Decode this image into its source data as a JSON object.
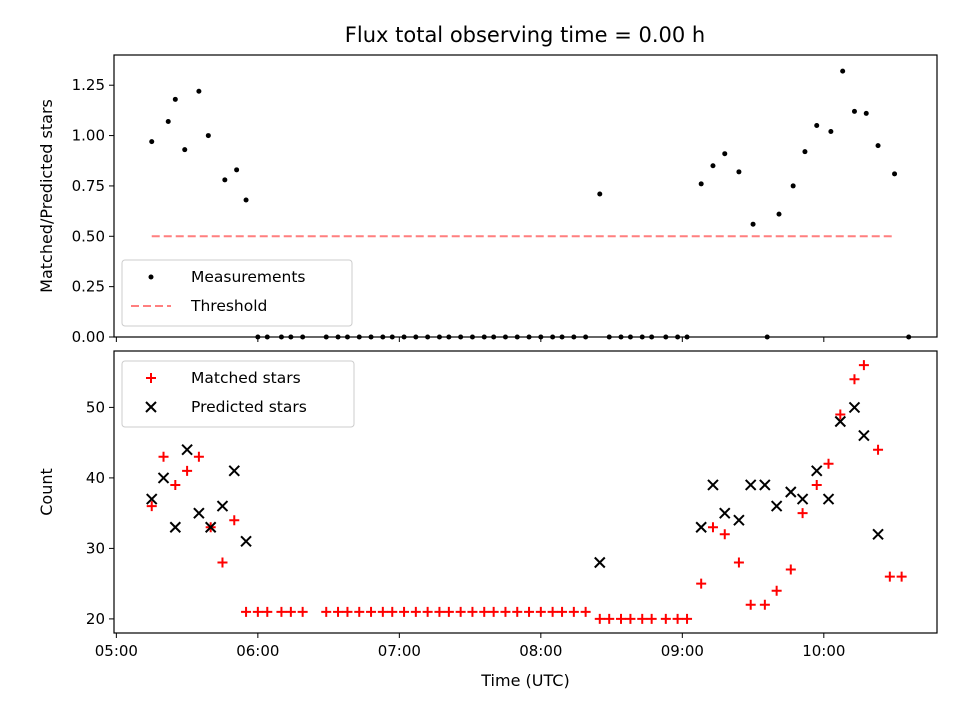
{
  "figure": {
    "title": "Flux total observing time = 0.00 h"
  },
  "chart_data": [
    {
      "type": "scatter",
      "xlabel": "",
      "ylabel": "Matched/Predicted stars",
      "xlim": [
        "04:59",
        "10:48"
      ],
      "ylim": [
        0,
        1.4
      ],
      "yticks": [
        0,
        0.25,
        0.5,
        0.75,
        1.0,
        1.25
      ],
      "ytick_labels": [
        "0.00",
        "0.25",
        "0.50",
        "0.75",
        "1.00",
        "1.25"
      ],
      "xticks": [
        "05:00",
        "06:00",
        "07:00",
        "08:00",
        "09:00",
        "10:00"
      ],
      "show_xtick_labels": false,
      "grid": false,
      "legend": {
        "placement": "lower-left",
        "entries": [
          "Measurements",
          "Threshold"
        ]
      },
      "series": [
        {
          "name": "Measurements",
          "color": "#000000",
          "marker": "dot",
          "x": [
            "05:15",
            "05:22",
            "05:25",
            "05:29",
            "05:35",
            "05:39",
            "05:46",
            "05:51",
            "05:55",
            "06:00",
            "06:04",
            "06:10",
            "06:14",
            "06:19",
            "06:29",
            "06:34",
            "06:38",
            "06:43",
            "06:48",
            "06:53",
            "06:57",
            "07:02",
            "07:07",
            "07:12",
            "07:17",
            "07:21",
            "07:26",
            "07:31",
            "07:36",
            "07:40",
            "07:45",
            "07:50",
            "07:55",
            "08:00",
            "08:05",
            "08:09",
            "08:14",
            "08:19",
            "08:25",
            "08:29",
            "08:34",
            "08:38",
            "08:43",
            "08:47",
            "08:53",
            "08:58",
            "09:02",
            "09:08",
            "09:13",
            "09:18",
            "09:24",
            "09:30",
            "09:36",
            "09:41",
            "09:47",
            "09:52",
            "09:57",
            "10:03",
            "10:08",
            "10:13",
            "10:18",
            "10:23",
            "10:30",
            "10:36"
          ],
          "y": [
            0.97,
            1.07,
            1.18,
            0.93,
            1.22,
            1.0,
            0.78,
            0.83,
            0.68,
            0,
            0,
            0,
            0,
            0,
            0,
            0,
            0,
            0,
            0,
            0,
            0,
            0,
            0,
            0,
            0,
            0,
            0,
            0,
            0,
            0,
            0,
            0,
            0,
            0,
            0,
            0,
            0,
            0,
            0.71,
            0,
            0,
            0,
            0,
            0,
            0,
            0,
            0,
            0.76,
            0.85,
            0.91,
            0.82,
            0.56,
            0,
            0.61,
            0.75,
            0.92,
            1.05,
            1.02,
            1.32,
            1.12,
            1.11,
            0.95,
            0.81,
            0
          ]
        },
        {
          "name": "Threshold",
          "color": "#ff7f7f",
          "style": "dashed",
          "x": [
            "05:15",
            "10:30"
          ],
          "y": [
            0.5,
            0.5
          ]
        }
      ]
    },
    {
      "type": "scatter",
      "xlabel": "Time (UTC)",
      "ylabel": "Count",
      "xlim": [
        "04:59",
        "10:48"
      ],
      "ylim": [
        18,
        58
      ],
      "yticks": [
        20,
        30,
        40,
        50
      ],
      "ytick_labels": [
        "20",
        "30",
        "40",
        "50"
      ],
      "xticks": [
        "05:00",
        "06:00",
        "07:00",
        "08:00",
        "09:00",
        "10:00"
      ],
      "xtick_labels": [
        "05:00",
        "06:00",
        "07:00",
        "08:00",
        "09:00",
        "10:00"
      ],
      "grid": false,
      "legend": {
        "placement": "upper-left",
        "entries": [
          "Matched stars",
          "Predicted stars"
        ]
      },
      "series": [
        {
          "name": "Matched stars",
          "color": "#ff0000",
          "marker": "plus",
          "x": [
            "05:15",
            "05:20",
            "05:25",
            "05:30",
            "05:35",
            "05:40",
            "05:45",
            "05:50",
            "05:55",
            "06:00",
            "06:04",
            "06:10",
            "06:14",
            "06:19",
            "06:29",
            "06:34",
            "06:38",
            "06:43",
            "06:48",
            "06:53",
            "06:57",
            "07:02",
            "07:07",
            "07:12",
            "07:17",
            "07:21",
            "07:26",
            "07:31",
            "07:36",
            "07:40",
            "07:45",
            "07:50",
            "07:55",
            "08:00",
            "08:05",
            "08:09",
            "08:14",
            "08:19",
            "08:25",
            "08:29",
            "08:34",
            "08:38",
            "08:43",
            "08:47",
            "08:53",
            "08:58",
            "09:02",
            "09:08",
            "09:13",
            "09:18",
            "09:24",
            "09:29",
            "09:35",
            "09:40",
            "09:46",
            "09:51",
            "09:57",
            "10:02",
            "10:07",
            "10:13",
            "10:17",
            "10:23",
            "10:28",
            "10:33"
          ],
          "y": [
            36,
            43,
            39,
            41,
            43,
            33,
            28,
            34,
            21,
            21,
            21,
            21,
            21,
            21,
            21,
            21,
            21,
            21,
            21,
            21,
            21,
            21,
            21,
            21,
            21,
            21,
            21,
            21,
            21,
            21,
            21,
            21,
            21,
            21,
            21,
            21,
            21,
            21,
            20,
            20,
            20,
            20,
            20,
            20,
            20,
            20,
            20,
            25,
            33,
            32,
            28,
            22,
            22,
            24,
            27,
            35,
            39,
            42,
            49,
            54,
            56,
            44,
            26,
            26
          ]
        },
        {
          "name": "Predicted stars",
          "color": "#000000",
          "marker": "x",
          "x": [
            "05:15",
            "05:20",
            "05:25",
            "05:30",
            "05:35",
            "05:40",
            "05:45",
            "05:50",
            "05:55",
            "08:25",
            "09:08",
            "09:13",
            "09:18",
            "09:24",
            "09:29",
            "09:35",
            "09:40",
            "09:46",
            "09:51",
            "09:57",
            "10:02",
            "10:07",
            "10:13",
            "10:17",
            "10:23"
          ],
          "y": [
            37,
            40,
            33,
            44,
            35,
            33,
            36,
            41,
            31,
            28,
            33,
            39,
            35,
            34,
            39,
            39,
            36,
            38,
            37,
            41,
            37,
            48,
            50,
            46,
            32
          ]
        }
      ]
    }
  ]
}
